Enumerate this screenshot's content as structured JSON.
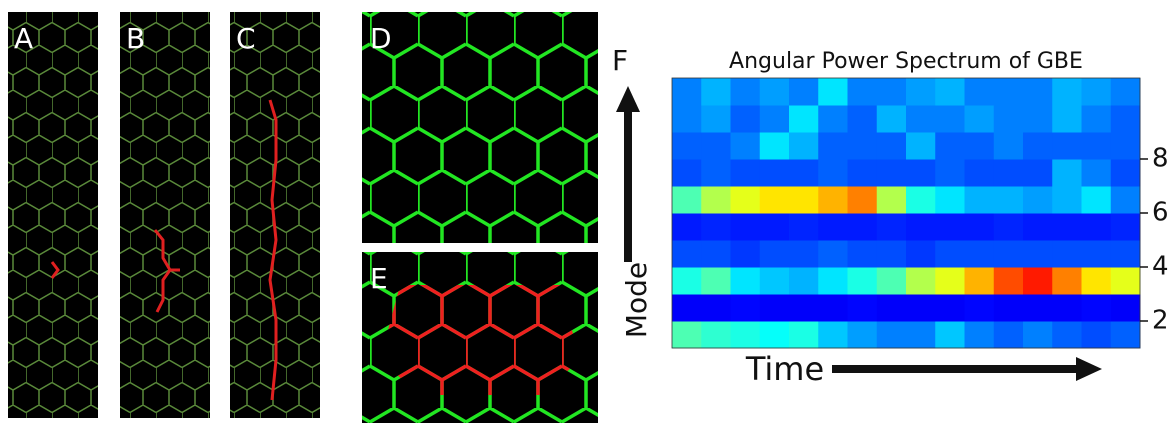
{
  "panels": [
    "A",
    "B",
    "C",
    "D",
    "E",
    "F"
  ],
  "chart_data": {
    "type": "heatmap",
    "title": "Angular Power Spectrum of GBE",
    "x_label": "Time",
    "y_label": "Mode",
    "y": [
      1,
      2,
      3,
      4,
      5,
      6,
      7,
      8,
      9,
      10
    ],
    "ylim": [
      1,
      11
    ],
    "yticks": [
      2,
      4,
      6,
      8
    ],
    "values": [
      [
        0.45,
        0.42,
        0.4,
        0.38,
        0.4,
        0.32,
        0.28,
        0.25,
        0.25,
        0.32,
        0.25,
        0.22,
        0.25,
        0.22,
        0.2,
        0.22
      ],
      [
        0.12,
        0.12,
        0.13,
        0.12,
        0.12,
        0.12,
        0.13,
        0.12,
        0.12,
        0.12,
        0.13,
        0.12,
        0.12,
        0.12,
        0.13,
        0.12
      ],
      [
        0.4,
        0.45,
        0.35,
        0.32,
        0.3,
        0.35,
        0.4,
        0.45,
        0.55,
        0.6,
        0.7,
        0.8,
        0.85,
        0.75,
        0.65,
        0.6
      ],
      [
        0.2,
        0.2,
        0.18,
        0.2,
        0.2,
        0.22,
        0.2,
        0.2,
        0.18,
        0.2,
        0.2,
        0.2,
        0.2,
        0.2,
        0.2,
        0.2
      ],
      [
        0.15,
        0.16,
        0.15,
        0.15,
        0.16,
        0.15,
        0.15,
        0.16,
        0.15,
        0.15,
        0.15,
        0.16,
        0.15,
        0.15,
        0.15,
        0.16
      ],
      [
        0.45,
        0.55,
        0.6,
        0.65,
        0.65,
        0.7,
        0.75,
        0.55,
        0.4,
        0.35,
        0.3,
        0.3,
        0.28,
        0.3,
        0.35,
        0.25
      ],
      [
        0.2,
        0.22,
        0.2,
        0.2,
        0.2,
        0.22,
        0.2,
        0.2,
        0.2,
        0.22,
        0.2,
        0.2,
        0.2,
        0.3,
        0.25,
        0.2
      ],
      [
        0.22,
        0.22,
        0.25,
        0.35,
        0.3,
        0.22,
        0.22,
        0.22,
        0.3,
        0.22,
        0.22,
        0.25,
        0.22,
        0.22,
        0.22,
        0.22
      ],
      [
        0.25,
        0.28,
        0.22,
        0.25,
        0.35,
        0.25,
        0.22,
        0.3,
        0.25,
        0.25,
        0.28,
        0.25,
        0.25,
        0.3,
        0.25,
        0.22
      ],
      [
        0.25,
        0.3,
        0.25,
        0.28,
        0.25,
        0.35,
        0.25,
        0.25,
        0.28,
        0.3,
        0.25,
        0.25,
        0.25,
        0.3,
        0.28,
        0.25
      ]
    ]
  }
}
